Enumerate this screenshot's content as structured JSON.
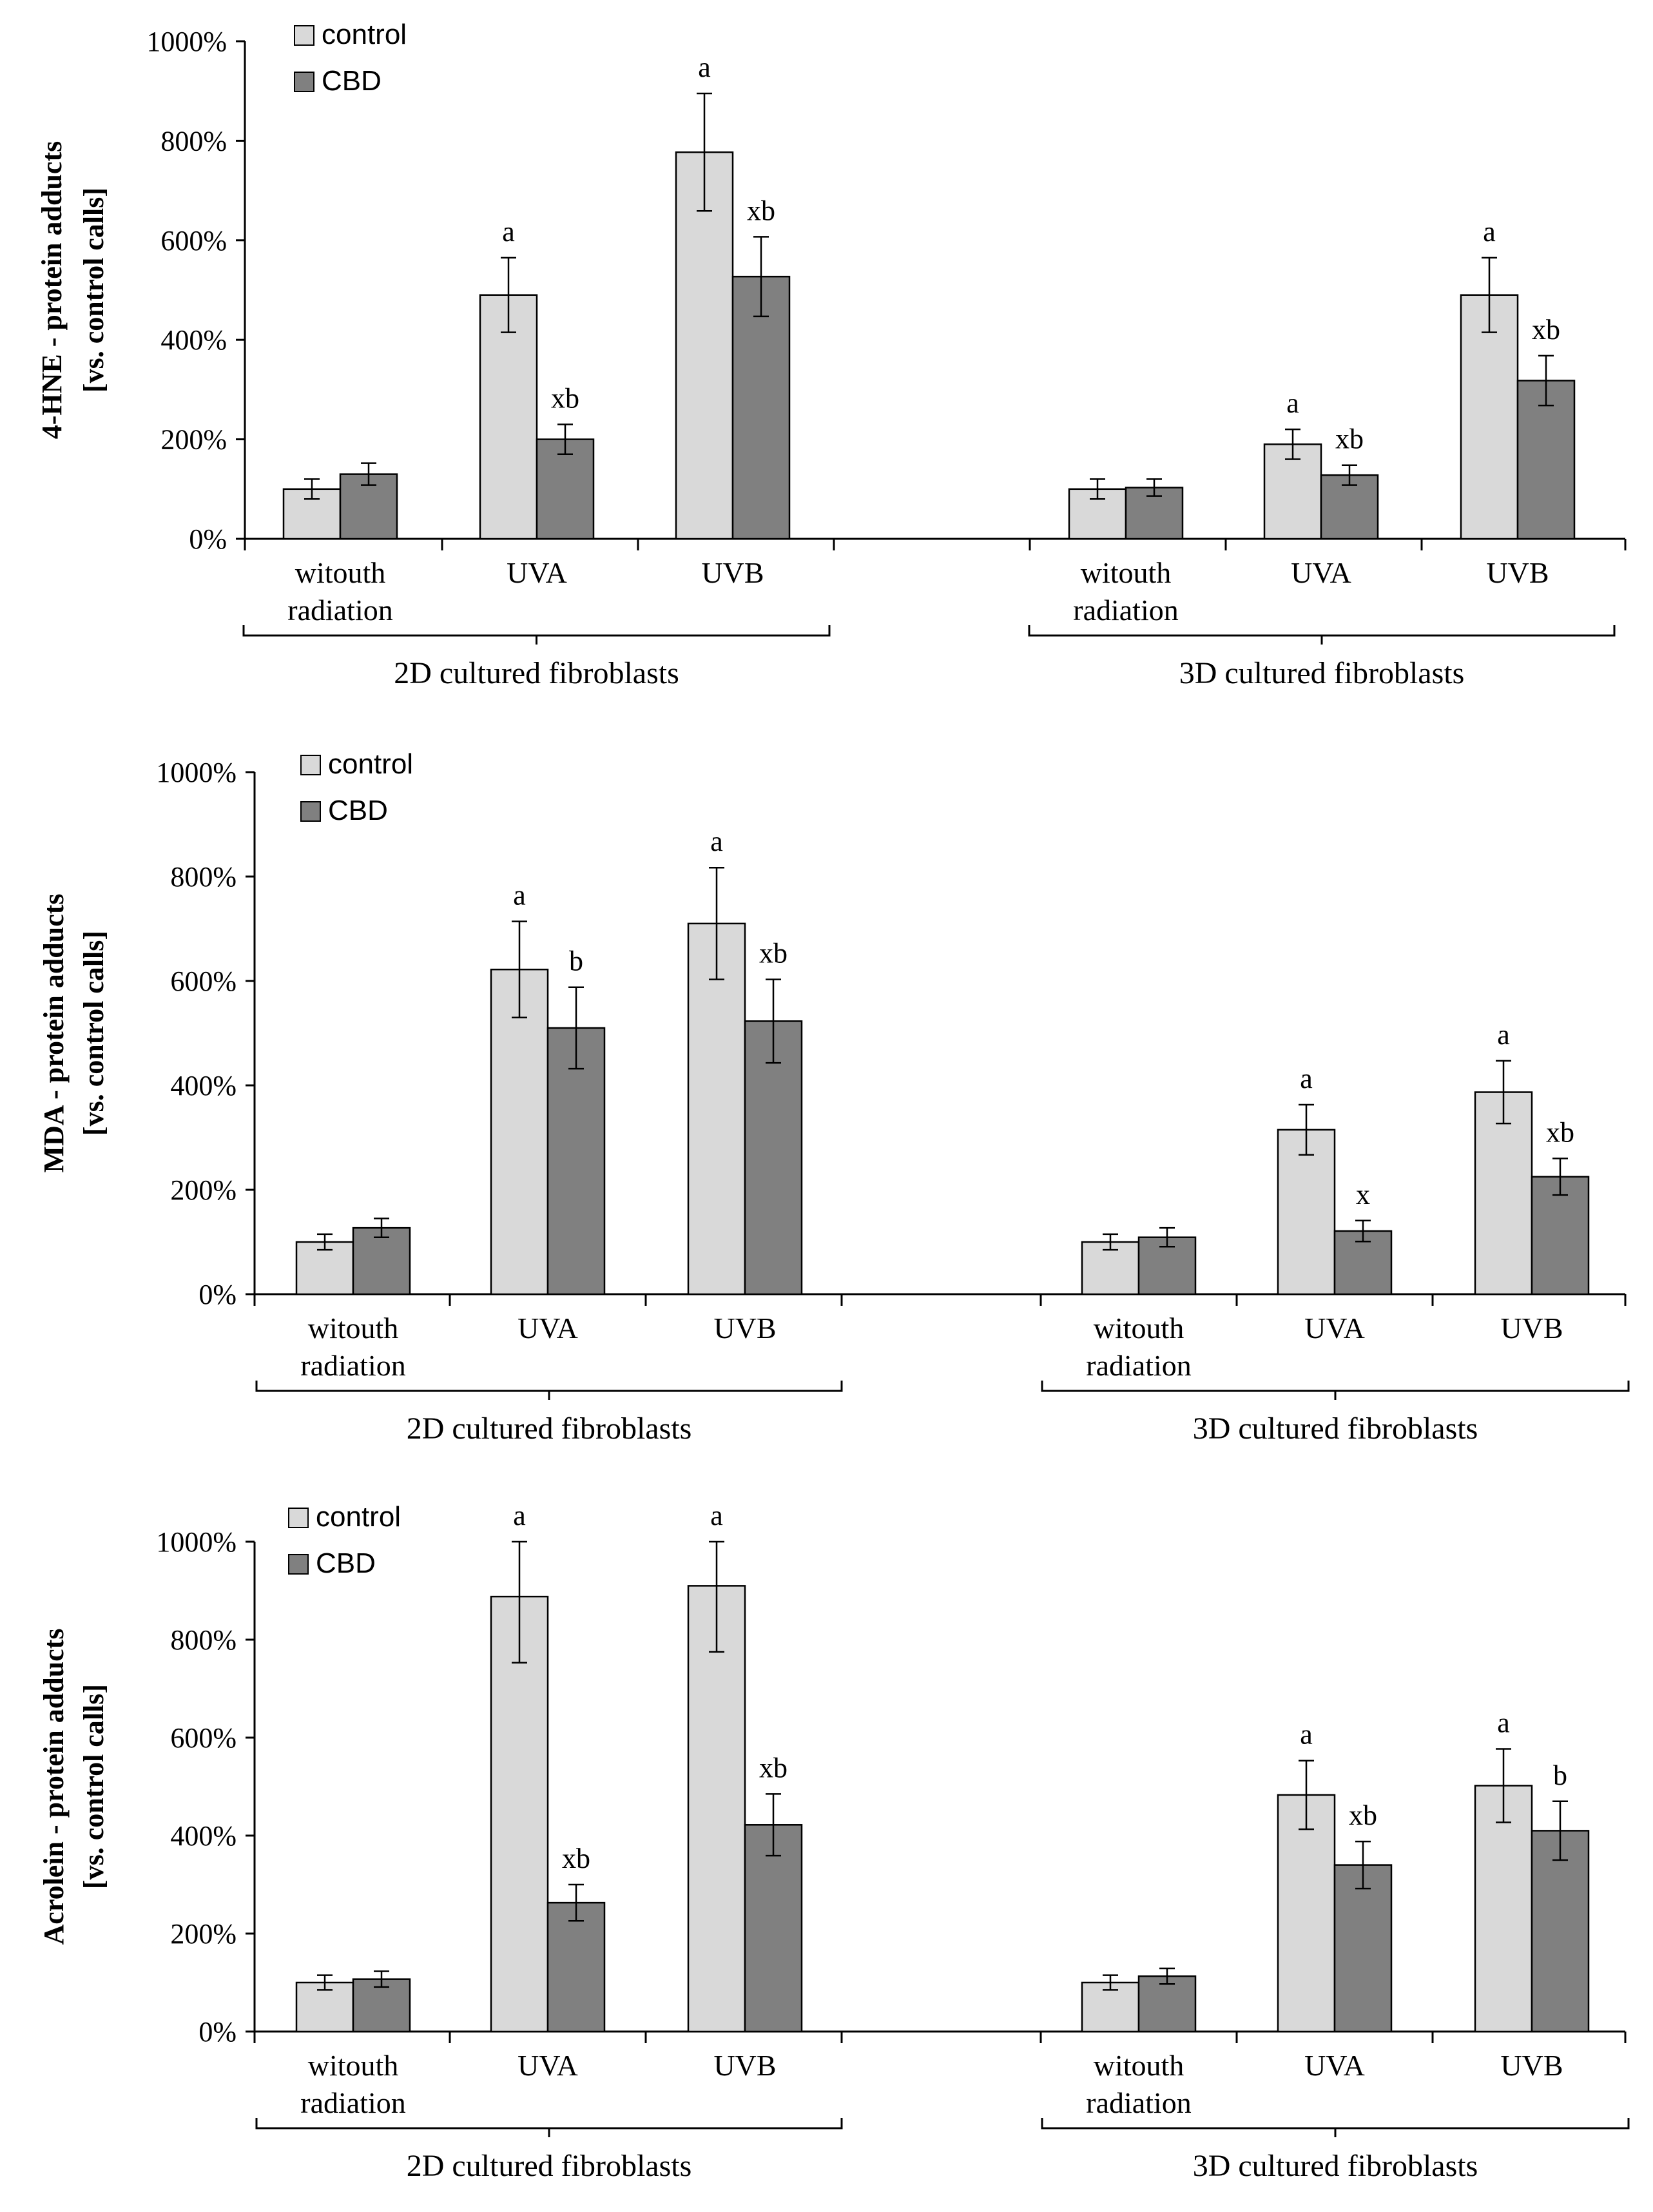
{
  "chart_data": [
    {
      "type": "bar",
      "title": "",
      "ylabel_line1": "4-HNE - protein adducts",
      "ylabel_line2": "[vs. control calls]",
      "ylim": [
        0,
        1000
      ],
      "y_ticks": [
        "0%",
        "200%",
        "400%",
        "600%",
        "800%",
        "1000%"
      ],
      "grid": false,
      "legend_position": "top-left",
      "categories": [
        "witouth radiation",
        "UVA",
        "UVB",
        "witouth radiation",
        "UVA",
        "UVB"
      ],
      "groups": [
        "2D cultured fibroblasts",
        "3D cultured fibroblasts"
      ],
      "series": [
        {
          "name": "control",
          "color": "#d9d9d9",
          "values": [
            100,
            490,
            777,
            100,
            190,
            490
          ],
          "errors": [
            20,
            75,
            118,
            20,
            30,
            75
          ],
          "annotations": [
            "",
            "a",
            "a",
            "",
            "a",
            "a"
          ]
        },
        {
          "name": "CBD",
          "color": "#808080",
          "values": [
            130,
            200,
            527,
            103,
            128,
            318
          ],
          "errors": [
            22,
            30,
            80,
            17,
            20,
            50
          ],
          "annotations": [
            "",
            "xb",
            "xb",
            "",
            "xb",
            "xb"
          ]
        }
      ]
    },
    {
      "type": "bar",
      "title": "",
      "ylabel_line1": "MDA - protein adducts",
      "ylabel_line2": "[vs. control calls]",
      "ylim": [
        0,
        1000
      ],
      "y_ticks": [
        "0%",
        "200%",
        "400%",
        "600%",
        "800%",
        "1000%"
      ],
      "grid": false,
      "legend_position": "top-left",
      "categories": [
        "witouth radiation",
        "UVA",
        "UVB",
        "witouth radiation",
        "UVA",
        "UVB"
      ],
      "groups": [
        "2D cultured fibroblasts",
        "3D cultured fibroblasts"
      ],
      "series": [
        {
          "name": "control",
          "color": "#d9d9d9",
          "values": [
            100,
            622,
            710,
            100,
            315,
            387
          ],
          "errors": [
            15,
            92,
            107,
            15,
            48,
            60
          ],
          "annotations": [
            "",
            "a",
            "a",
            "",
            "a",
            "a"
          ]
        },
        {
          "name": "CBD",
          "color": "#808080",
          "values": [
            127,
            510,
            523,
            109,
            121,
            225
          ],
          "errors": [
            18,
            78,
            80,
            18,
            20,
            35
          ],
          "annotations": [
            "",
            "b",
            "xb",
            "",
            "x",
            "xb"
          ]
        }
      ]
    },
    {
      "type": "bar",
      "title": "",
      "ylabel_line1": "Acrolein - protein adducts",
      "ylabel_line2": "[vs. control calls]",
      "ylim": [
        0,
        1000
      ],
      "y_ticks": [
        "0%",
        "200%",
        "400%",
        "600%",
        "800%",
        "1000%"
      ],
      "grid": false,
      "legend_position": "top-left",
      "categories": [
        "witouth radiation",
        "UVA",
        "UVB",
        "witouth radiation",
        "UVA",
        "UVB"
      ],
      "groups": [
        "2D cultured fibroblasts",
        "3D cultured fibroblasts"
      ],
      "series": [
        {
          "name": "control",
          "color": "#d9d9d9",
          "values": [
            100,
            888,
            910,
            100,
            483,
            502
          ],
          "errors": [
            15,
            135,
            135,
            15,
            70,
            75
          ],
          "annotations": [
            "",
            "a",
            "a",
            "",
            "a",
            "a"
          ]
        },
        {
          "name": "CBD",
          "color": "#808080",
          "values": [
            107,
            263,
            422,
            113,
            340,
            410
          ],
          "errors": [
            16,
            37,
            63,
            16,
            48,
            60
          ],
          "annotations": [
            "",
            "xb",
            "xb",
            "",
            "xb",
            "b"
          ]
        }
      ]
    }
  ]
}
